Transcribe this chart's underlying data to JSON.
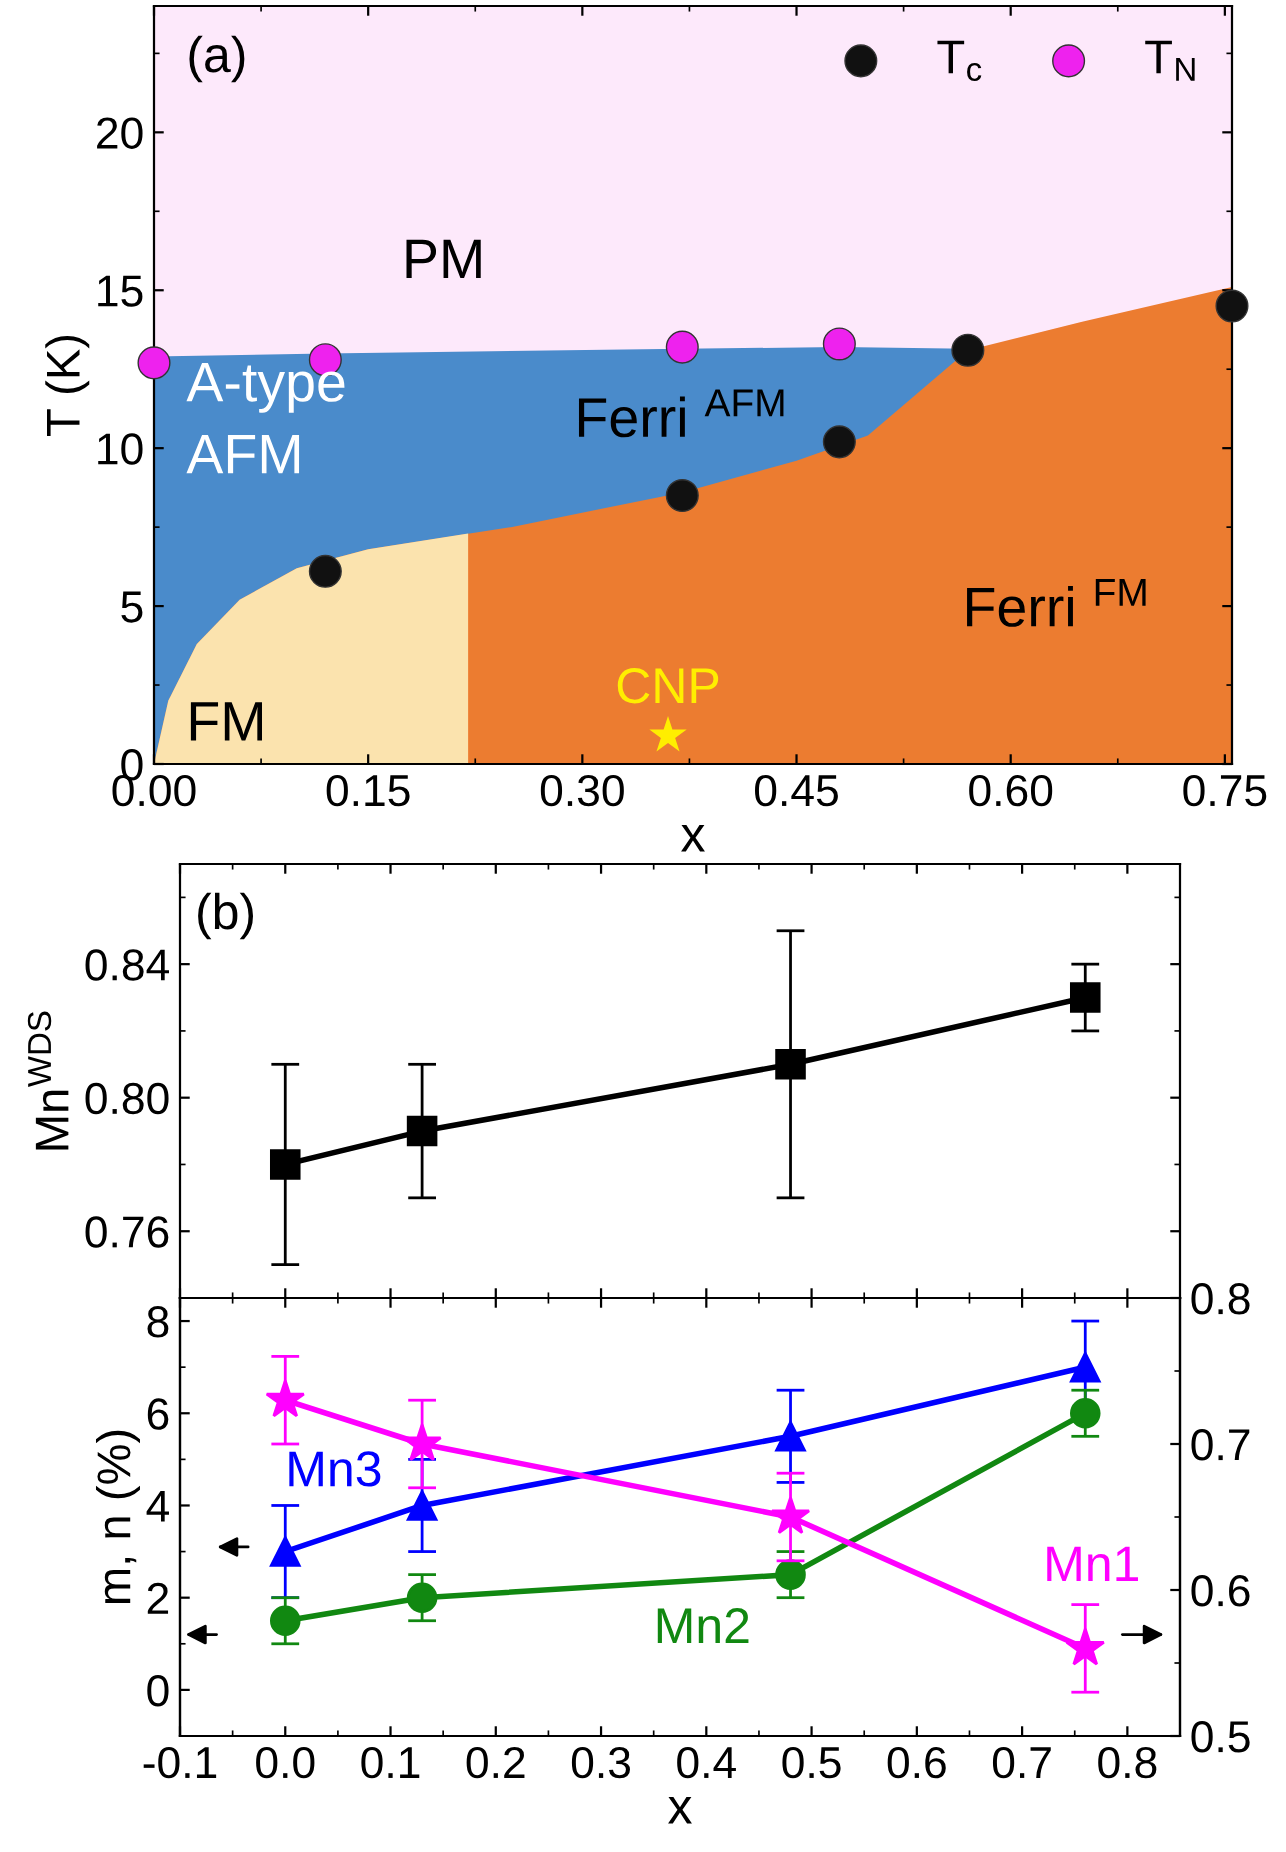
{
  "chart_data": [
    {
      "type": "scatter",
      "xlabel": "x",
      "ylabel": "T (K)",
      "xlim": [
        0,
        0.755
      ],
      "xticks": [
        {
          "value": 0,
          "label": "0.00"
        },
        {
          "value": 0.15,
          "label": "0.15"
        },
        {
          "value": 0.3,
          "label": "0.30"
        },
        {
          "value": 0.45,
          "label": "0.45"
        },
        {
          "value": 0.6,
          "label": "0.60"
        },
        {
          "value": 0.75,
          "label": "0.75"
        }
      ],
      "ylim": [
        0,
        24
      ],
      "yticks": [
        0,
        5,
        10,
        15,
        20
      ],
      "legend": "top right",
      "marker": "circle",
      "bands": [
        {
          "axis": "y",
          "from": 12.5,
          "to": 24,
          "color": "#fde9fb"
        }
      ],
      "series": [
        {
          "type": "area",
          "marker": "none",
          "color": "#4a8bcb",
          "x": [
            0,
            0.12,
            0.37,
            0.48,
            0.57
          ],
          "values": [
            12.9,
            13.0,
            13.15,
            13.2,
            13.15
          ]
        },
        {
          "type": "area",
          "marker": "none",
          "color": "#ec7c30",
          "x": [
            0,
            0.01,
            0.03,
            0.06,
            0.1,
            0.15,
            0.25,
            0.37,
            0.45,
            0.5,
            0.57,
            0.65,
            0.755
          ],
          "values": [
            0,
            2,
            3.8,
            5.2,
            6.2,
            6.8,
            7.5,
            8.6,
            9.6,
            10.4,
            13.1,
            14.0,
            15.1
          ]
        },
        {
          "type": "area",
          "marker": "none",
          "color": "#fbe3ae",
          "x": [
            0,
            0.01,
            0.03,
            0.06,
            0.1,
            0.15,
            0.22
          ],
          "values": [
            0,
            2,
            3.8,
            5.2,
            6.2,
            6.8,
            7.3
          ]
        },
        {
          "type": "scatter",
          "name": "T$_{c}$",
          "color": "#111111",
          "x": [
            0.12,
            0.37,
            0.48,
            0.57,
            0.755
          ],
          "values": [
            6.1,
            8.5,
            10.2,
            13.1,
            14.5
          ]
        },
        {
          "type": "scatter",
          "name": "T$_{N}$",
          "color": "#ee22ee",
          "x": [
            0.0,
            0.12,
            0.37,
            0.48
          ],
          "values": [
            12.7,
            12.8,
            13.2,
            13.3
          ]
        },
        {
          "type": "scatter",
          "color": "#ffee00",
          "marker": "star",
          "x": [
            0.36
          ],
          "values": [
            0.9
          ]
        }
      ],
      "annotations": [
        "(a)",
        "PM",
        "A-type\nAFM",
        "Ferri $^{AFM}$",
        "Ferri $^{FM}$",
        "FM",
        {
          "text": "CNP",
          "x": 0.36,
          "y": 0.9
        }
      ]
    },
    {
      "type": "line",
      "ylabel": "Mn$^{WDS}$",
      "xlim": [
        -0.1,
        0.85
      ],
      "ylim": [
        0.74,
        0.87
      ],
      "yticks": [
        0.76,
        {
          "value": 0.8,
          "label": "0.80"
        },
        0.84
      ],
      "tick_labels": "y",
      "marker": "square",
      "series": [
        {
          "color": "#000000",
          "x": [
            0.0,
            0.13,
            0.48,
            0.76
          ],
          "values": [
            0.78,
            0.79,
            0.81,
            0.83
          ],
          "errors": [
            0.03,
            0.02,
            0.04,
            0.01
          ]
        }
      ],
      "annotations": [
        "(b)"
      ]
    },
    {
      "type": "line",
      "xlabel": "x",
      "ylabel": "m, n (%)",
      "xlim": [
        -0.1,
        0.85
      ],
      "xticks": [
        -0.1,
        {
          "value": 0,
          "label": "0.0"
        },
        0.1,
        0.2,
        0.3,
        0.4,
        0.5,
        0.6,
        0.7,
        0.8
      ],
      "ylim": [
        -1,
        8.5
      ],
      "yticks": [
        0,
        2,
        4,
        6,
        8
      ],
      "y2lim": [
        0.5,
        0.8
      ],
      "y2ticks": [
        0.5,
        0.6,
        0.7,
        0.8
      ],
      "series": [
        {
          "name": "Mn3",
          "color": "#0000ff",
          "marker": "triangle",
          "x": [
            0.0,
            0.13,
            0.48,
            0.76
          ],
          "values": [
            3,
            4,
            5.5,
            7
          ],
          "errors": [
            1,
            1,
            1,
            1
          ]
        },
        {
          "name": "Mn2",
          "color": "#118811",
          "marker": "circle",
          "x": [
            0.0,
            0.13,
            0.48,
            0.76
          ],
          "values": [
            1.5,
            2,
            2.5,
            6
          ],
          "errors": [
            0.5,
            0.5,
            0.5,
            0.5
          ]
        },
        {
          "name": "Mn1",
          "color": "#ff00ff",
          "marker": "star",
          "axis": "y2",
          "x": [
            0.0,
            0.13,
            0.48,
            0.76
          ],
          "values": [
            0.73,
            0.7,
            0.65,
            0.56
          ],
          "errors": [
            0.03,
            0.03,
            0.03,
            0.03
          ]
        }
      ]
    }
  ]
}
